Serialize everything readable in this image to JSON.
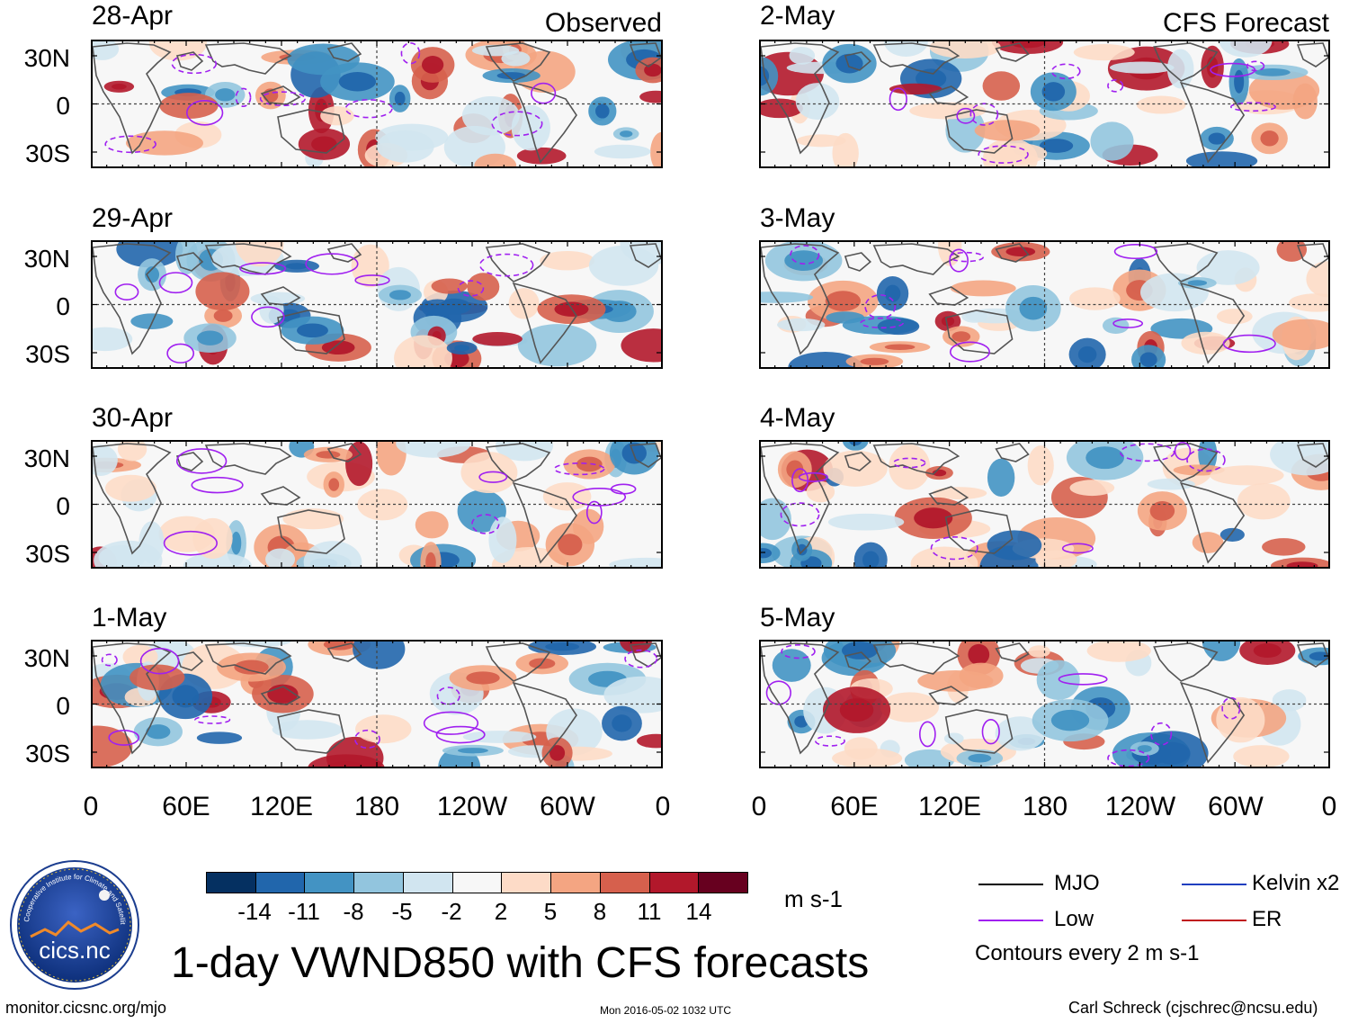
{
  "panels": {
    "observed_tag": "Observed",
    "forecast_tag": "CFS Forecast",
    "left_dates": [
      "28-Apr",
      "29-Apr",
      "30-Apr",
      "1-May"
    ],
    "right_dates": [
      "2-May",
      "3-May",
      "4-May",
      "5-May"
    ]
  },
  "axes": {
    "lat_labels": [
      "30N",
      "0",
      "30S"
    ],
    "lon_labels": [
      "0",
      "60E",
      "120E",
      "180",
      "120W",
      "60W",
      "0"
    ]
  },
  "colorbar": {
    "ticks": [
      "-14",
      "-11",
      "-8",
      "-5",
      "-2",
      "2",
      "5",
      "8",
      "11",
      "14"
    ],
    "colors": [
      "#053061",
      "#2166ac",
      "#4393c3",
      "#92c5de",
      "#d1e5f0",
      "#f7f7f7",
      "#fddbc7",
      "#f4a582",
      "#d6604d",
      "#b2182b",
      "#67001f"
    ],
    "units": "m s-1"
  },
  "legend": {
    "mjo": "MJO",
    "kelvin": "Kelvin x2",
    "low": "Low",
    "er": "ER",
    "colors": {
      "mjo": "#000000",
      "kelvin": "#1f3fbf",
      "low": "#a020f0",
      "er": "#c0141c"
    },
    "contour_note": "Contours every 2 m s-1"
  },
  "title": "1-day VWND850 with CFS forecasts",
  "footer": {
    "url": "monitor.cicsnc.org/mjo",
    "timestamp": "Mon 2016-05-02 1032 UTC",
    "author": "Carl Schreck (cjschrec@ncsu.edu)"
  },
  "logo": {
    "ring_text": "Cooperative Institute for Climate and Satellites",
    "name": "cics.nc"
  }
}
